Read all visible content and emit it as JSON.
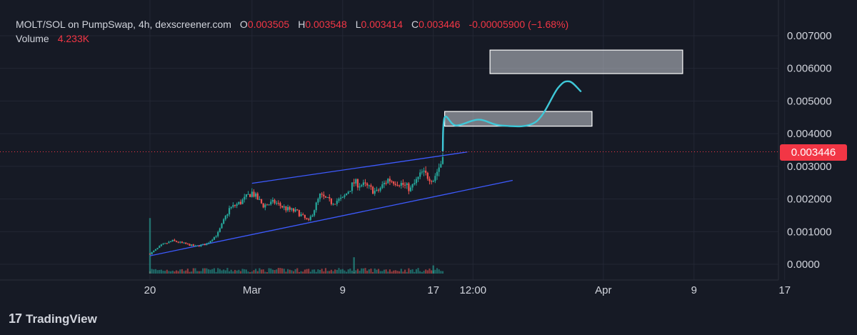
{
  "legend": {
    "symbol": "MOLT/SOL on PumpSwap, 4h, dexscreener.com",
    "o_label": "O",
    "o_value": "0.003505",
    "h_label": "H",
    "h_value": "0.003548",
    "l_label": "L",
    "l_value": "0.003414",
    "c_label": "C",
    "c_value": "0.003446",
    "change": "-0.00005900 (−1.68%)",
    "volume_label": "Volume",
    "volume_value": "4.233K"
  },
  "brand": {
    "logo_glyph": "17",
    "name": "TradingView"
  },
  "colors": {
    "background": "#161a25",
    "grid": "#232734",
    "text": "#d1d4dc",
    "up": "#26a69a",
    "down": "#ef5350",
    "channel": "#3d5afe",
    "projection": "#3fc8d8",
    "price_line": "#f23645"
  },
  "chart_data": {
    "type": "candlestick",
    "title": "MOLT/SOL on PumpSwap, 4h, dexscreener.com",
    "y_ticks": [
      "0.007000",
      "0.006000",
      "0.005000",
      "0.004000",
      "0.003000",
      "0.002000",
      "0.001000",
      "0.0000"
    ],
    "y_tick_values": [
      0.007,
      0.006,
      0.005,
      0.004,
      0.003,
      0.002,
      0.001,
      0.0
    ],
    "ylim": [
      -0.0002,
      0.0074
    ],
    "x_ticks": [
      "20",
      "Mar",
      "9",
      "17",
      "12:00",
      "Apr",
      "9",
      "17"
    ],
    "x_tick_dates": [
      "2025-02-20",
      "2025-03-01",
      "2025-03-09",
      "2025-03-17",
      "2025-03-20T12:00",
      "2025-04-01",
      "2025-04-09",
      "2025-04-17"
    ],
    "last_price": 0.003446,
    "last_price_label": "0.003446",
    "grid": true,
    "candle_interval": "4h",
    "data_range": [
      "2025-02-20",
      "2025-03-17T20:00"
    ],
    "close_anchors": [
      [
        "2025-02-20",
        0.00032
      ],
      [
        "2025-02-21",
        0.00058
      ],
      [
        "2025-02-22",
        0.00072
      ],
      [
        "2025-02-24",
        0.00055
      ],
      [
        "2025-02-25",
        0.00062
      ],
      [
        "2025-02-26",
        0.00095
      ],
      [
        "2025-02-27",
        0.0017
      ],
      [
        "2025-02-28",
        0.0019
      ],
      [
        "2025-03-01",
        0.0022
      ],
      [
        "2025-03-02",
        0.0018
      ],
      [
        "2025-03-03",
        0.0019
      ],
      [
        "2025-03-04",
        0.0017
      ],
      [
        "2025-03-05",
        0.0016
      ],
      [
        "2025-03-06",
        0.0013
      ],
      [
        "2025-03-07",
        0.0021
      ],
      [
        "2025-03-08",
        0.0019
      ],
      [
        "2025-03-09",
        0.002
      ],
      [
        "2025-03-10",
        0.0025
      ],
      [
        "2025-03-11",
        0.0024
      ],
      [
        "2025-03-12",
        0.0022
      ],
      [
        "2025-03-13",
        0.0026
      ],
      [
        "2025-03-14",
        0.0025
      ],
      [
        "2025-03-15",
        0.0023
      ],
      [
        "2025-03-16",
        0.0028
      ],
      [
        "2025-03-17",
        0.0026
      ],
      [
        "2025-03-17T16:00",
        0.0031
      ],
      [
        "2025-03-17T20:00",
        0.003446
      ]
    ],
    "volume_spikes": [
      [
        "2025-02-20",
        0.0017
      ],
      [
        "2025-03-10",
        0.0005
      ],
      [
        "2025-03-17",
        0.00025
      ]
    ],
    "annotations": {
      "channel_upper": [
        [
          "2025-03-01",
          0.00248
        ],
        [
          "2025-03-20",
          0.00344
        ]
      ],
      "channel_lower": [
        [
          "2025-02-20",
          0.00026
        ],
        [
          "2025-03-24",
          0.00257
        ]
      ],
      "zones": [
        {
          "x": [
            "2025-03-18",
            "2025-03-31"
          ],
          "y": [
            0.00423,
            0.00468
          ]
        },
        {
          "x": [
            "2025-03-22",
            "2025-04-08"
          ],
          "y": [
            0.00584,
            0.00656
          ]
        }
      ],
      "projection_path": [
        [
          "2025-03-17T20:00",
          0.00348
        ],
        [
          "2025-03-18",
          0.0045
        ],
        [
          "2025-03-19",
          0.00425
        ],
        [
          "2025-03-21",
          0.00443
        ],
        [
          "2025-03-23",
          0.00425
        ],
        [
          "2025-03-26",
          0.00435
        ],
        [
          "2025-03-28",
          0.0054
        ],
        [
          "2025-03-29",
          0.0056
        ],
        [
          "2025-03-30",
          0.0053
        ]
      ]
    }
  }
}
